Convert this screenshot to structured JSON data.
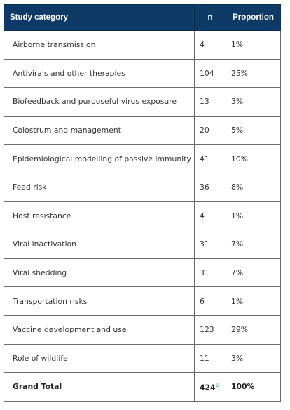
{
  "table": {
    "headers": {
      "category": "Study category",
      "n": "n",
      "proportion": "Proportion"
    },
    "rows": [
      {
        "category": "Airborne transmission",
        "n": "4",
        "proportion": "1%"
      },
      {
        "category": "Antivirals and other therapies",
        "n": "104",
        "proportion": "25%"
      },
      {
        "category": "Biofeedback and purposeful virus exposure",
        "n": "13",
        "proportion": "3%"
      },
      {
        "category": "Colostrum and management",
        "n": "20",
        "proportion": "5%"
      },
      {
        "category": "Epidemiological modelling of passive immunity",
        "n": "41",
        "proportion": "10%"
      },
      {
        "category": "Feed risk",
        "n": "36",
        "proportion": "8%"
      },
      {
        "category": "Host resistance",
        "n": "4",
        "proportion": "1%"
      },
      {
        "category": "Viral inactivation",
        "n": "31",
        "proportion": "7%"
      },
      {
        "category": "Viral shedding",
        "n": "31",
        "proportion": "7%"
      },
      {
        "category": "Transportation risks",
        "n": "6",
        "proportion": "1%"
      },
      {
        "category": "Vaccine development and use",
        "n": "123",
        "proportion": "29%"
      },
      {
        "category": "Role of wildlife",
        "n": "11",
        "proportion": "3%"
      }
    ],
    "total": {
      "category": "Grand Total",
      "n": "424",
      "footnote_mark": "a",
      "proportion": "100%"
    }
  },
  "colors": {
    "header_bg": "#0d3a66",
    "header_text": "#ffffff",
    "border": "#6b6b6b",
    "footnote_link": "#2a8fbf"
  }
}
